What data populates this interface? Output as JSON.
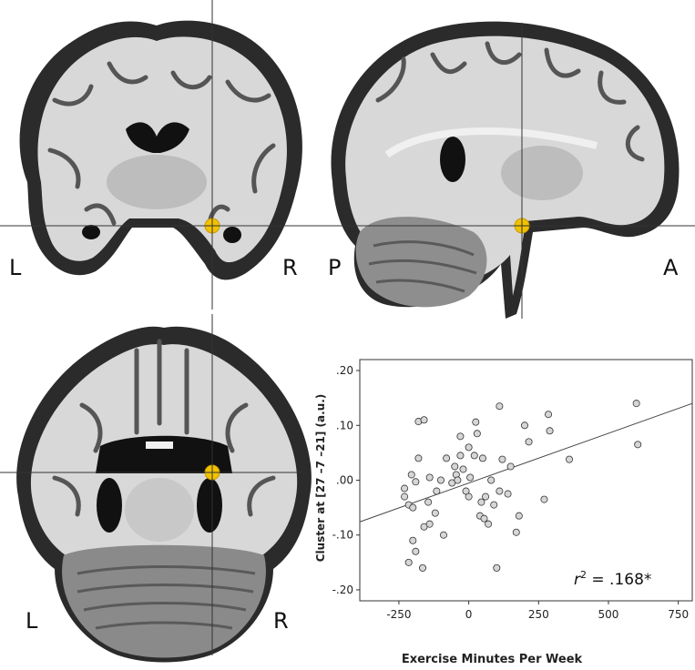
{
  "views": {
    "coronal": {
      "left_label": "L",
      "right_label": "R"
    },
    "sagittal": {
      "left_label": "P",
      "right_label": "A"
    },
    "axial": {
      "left_label": "L",
      "right_label": "R"
    }
  },
  "colors": {
    "cluster": "#f2c200",
    "brain_light": "#dcdcdc",
    "brain_dark": "#3a3a3a"
  },
  "chart_data": {
    "type": "scatter",
    "xlabel": "Exercise Minutes Per Week",
    "ylabel": "Cluster at [27 –7 –21] (a.u.)",
    "xlim": [
      -390,
      800
    ],
    "ylim": [
      -0.22,
      0.22
    ],
    "xticks": [
      -250,
      0,
      250,
      500,
      750
    ],
    "xtick_labels": [
      "-250",
      "0",
      "250",
      "500",
      "750"
    ],
    "yticks": [
      0.2,
      0.1,
      0.0,
      -0.1,
      -0.2
    ],
    "ytick_labels": [
      ".20",
      ".10",
      ".00",
      "-.10",
      "-.20"
    ],
    "annotation": {
      "symbol": "r",
      "superscript": "2",
      "text": " = .168*"
    },
    "fit_line": {
      "x": [
        -390,
        800
      ],
      "y": [
        -0.076,
        0.14
      ]
    },
    "points": [
      [
        -180,
        0.107
      ],
      [
        -160,
        0.11
      ],
      [
        -180,
        0.04
      ],
      [
        -190,
        -0.003
      ],
      [
        -215,
        -0.045
      ],
      [
        -200,
        -0.05
      ],
      [
        -205,
        0.01
      ],
      [
        -230,
        -0.015
      ],
      [
        -230,
        -0.03
      ],
      [
        -200,
        -0.11
      ],
      [
        -190,
        -0.13
      ],
      [
        -165,
        -0.16
      ],
      [
        -215,
        -0.15
      ],
      [
        -160,
        -0.085
      ],
      [
        -140,
        -0.08
      ],
      [
        -145,
        -0.04
      ],
      [
        -140,
        0.005
      ],
      [
        -120,
        -0.06
      ],
      [
        -100,
        0.0
      ],
      [
        -80,
        0.04
      ],
      [
        -60,
        -0.005
      ],
      [
        -50,
        0.025
      ],
      [
        -45,
        0.01
      ],
      [
        -30,
        0.045
      ],
      [
        -40,
        0.0
      ],
      [
        -20,
        0.02
      ],
      [
        -30,
        0.08
      ],
      [
        -10,
        -0.02
      ],
      [
        0,
        -0.03
      ],
      [
        0,
        0.06
      ],
      [
        20,
        0.045
      ],
      [
        30,
        0.085
      ],
      [
        25,
        0.106
      ],
      [
        40,
        -0.065
      ],
      [
        55,
        -0.07
      ],
      [
        70,
        -0.08
      ],
      [
        45,
        -0.04
      ],
      [
        50,
        0.04
      ],
      [
        60,
        -0.03
      ],
      [
        80,
        0.0
      ],
      [
        90,
        -0.045
      ],
      [
        100,
        -0.16
      ],
      [
        110,
        -0.02
      ],
      [
        120,
        0.038
      ],
      [
        140,
        -0.025
      ],
      [
        110,
        0.135
      ],
      [
        150,
        0.025
      ],
      [
        170,
        -0.095
      ],
      [
        180,
        -0.065
      ],
      [
        200,
        0.1
      ],
      [
        215,
        0.07
      ],
      [
        270,
        -0.035
      ],
      [
        285,
        0.12
      ],
      [
        290,
        0.09
      ],
      [
        360,
        0.038
      ],
      [
        600,
        0.14
      ],
      [
        605,
        0.065
      ],
      [
        -90,
        -0.1
      ],
      [
        5,
        0.005
      ],
      [
        -115,
        -0.02
      ]
    ]
  }
}
